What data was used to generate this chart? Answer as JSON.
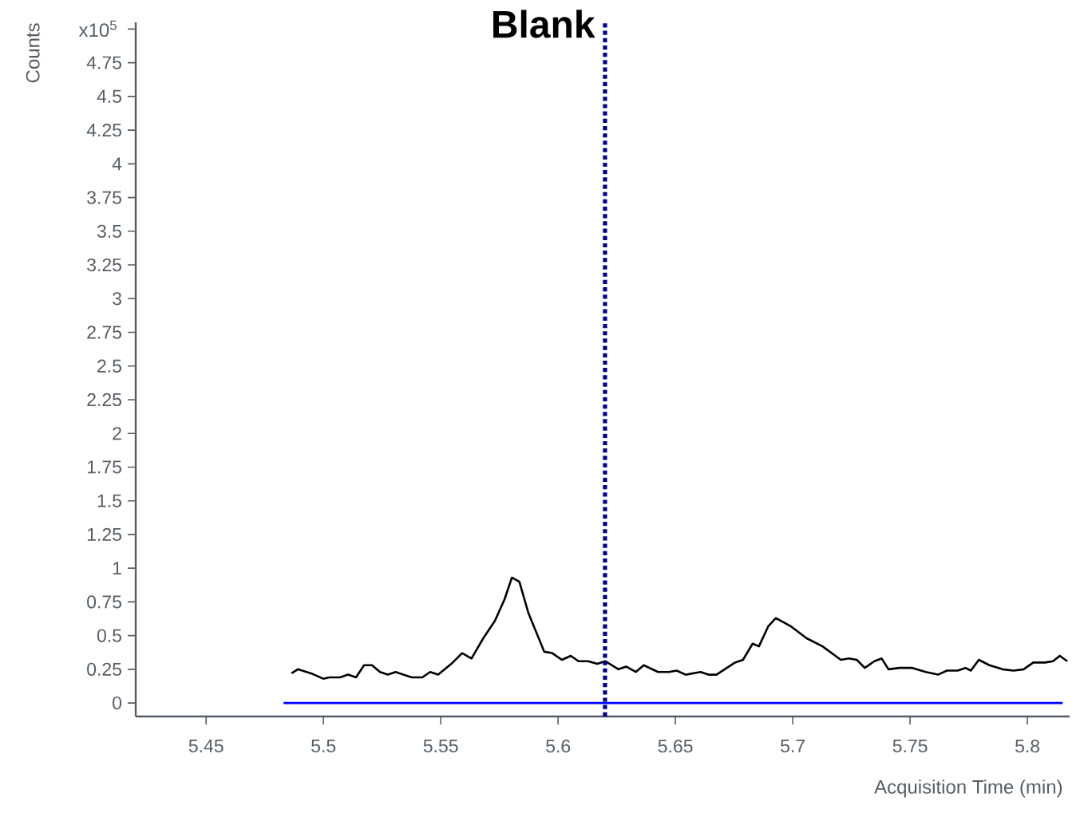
{
  "chart_data": {
    "type": "line",
    "xlabel": "Acquisition Time (min)",
    "ylabel": "Counts",
    "annotations": [
      "x10$^{5}$"
    ],
    "xlim": [
      5.42,
      5.818
    ],
    "ylim": [
      -0.1,
      5.05
    ],
    "xticks": [
      5.45,
      5.5,
      5.55,
      5.6,
      5.65,
      5.7,
      5.75,
      5.8
    ],
    "yticks": [
      0,
      0.25,
      0.5,
      0.75,
      1,
      1.25,
      1.5,
      1.75,
      2,
      2.25,
      2.5,
      2.75,
      3,
      3.25,
      3.5,
      3.75,
      4,
      4.25,
      4.5,
      4.75,
      {
        "value": 5,
        "label": null
      }
    ],
    "grid": false,
    "marker": "none",
    "line_style": "solid",
    "series": [
      {
        "color": "#0000ff",
        "x": [
          5.483,
          5.815
        ],
        "values": [
          0,
          0
        ]
      },
      {
        "color": "#000000",
        "x": [
          5.4864,
          5.4891,
          5.4947,
          5.4999,
          5.5026,
          5.5071,
          5.5105,
          5.5139,
          5.5173,
          5.5207,
          5.5241,
          5.5274,
          5.5308,
          5.5376,
          5.5421,
          5.5455,
          5.5489,
          5.5545,
          5.5591,
          5.5631,
          5.5681,
          5.5731,
          5.5772,
          5.5803,
          5.5835,
          5.5873,
          5.5941,
          5.5975,
          5.6016,
          5.6054,
          5.6087,
          5.6128,
          5.6167,
          5.6201,
          5.6257,
          5.629,
          5.6331,
          5.6365,
          5.6426,
          5.6472,
          5.6505,
          5.6544,
          5.6607,
          5.6641,
          5.6675,
          5.6754,
          5.6788,
          5.6829,
          5.6856,
          5.6896,
          5.6928,
          5.6991,
          5.7059,
          5.7127,
          5.7205,
          5.7239,
          5.7273,
          5.7307,
          5.7348,
          5.7379,
          5.7408,
          5.7454,
          5.751,
          5.7567,
          5.7619,
          5.7657,
          5.7703,
          5.7736,
          5.7759,
          5.7793,
          5.7838,
          5.7894,
          5.794,
          5.7984,
          5.8025,
          5.8075,
          5.8109,
          5.8138,
          5.817
        ],
        "values": [
          0.22,
          0.25,
          0.22,
          0.18,
          0.19,
          0.19,
          0.21,
          0.19,
          0.28,
          0.28,
          0.23,
          0.21,
          0.23,
          0.19,
          0.19,
          0.23,
          0.21,
          0.29,
          0.37,
          0.33,
          0.48,
          0.61,
          0.77,
          0.93,
          0.9,
          0.67,
          0.38,
          0.37,
          0.32,
          0.35,
          0.31,
          0.31,
          0.29,
          0.31,
          0.25,
          0.27,
          0.23,
          0.28,
          0.23,
          0.23,
          0.24,
          0.21,
          0.23,
          0.21,
          0.21,
          0.3,
          0.32,
          0.44,
          0.42,
          0.57,
          0.63,
          0.57,
          0.48,
          0.42,
          0.32,
          0.33,
          0.32,
          0.26,
          0.31,
          0.33,
          0.25,
          0.26,
          0.26,
          0.23,
          0.21,
          0.24,
          0.24,
          0.26,
          0.24,
          0.32,
          0.28,
          0.25,
          0.24,
          0.25,
          0.3,
          0.3,
          0.31,
          0.35,
          0.31
        ]
      }
    ],
    "ref_lines": [
      {
        "axis": "x",
        "value": 5.62,
        "label": "Blank",
        "color": "#00008b",
        "line_style": "dotted"
      }
    ]
  }
}
